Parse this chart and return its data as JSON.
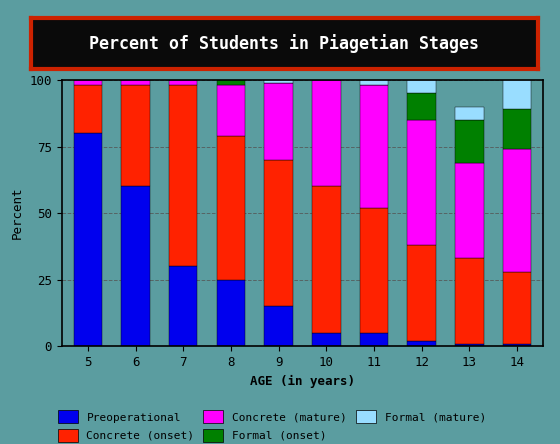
{
  "title": "Percent of Students in Piagetian Stages",
  "xlabel": "AGE (in years)",
  "ylabel": "Percent",
  "ages": [
    5,
    6,
    7,
    8,
    9,
    10,
    11,
    12,
    13,
    14
  ],
  "preoperational": [
    80,
    60,
    30,
    25,
    15,
    5,
    5,
    2,
    1,
    1
  ],
  "concrete_onset": [
    18,
    38,
    68,
    54,
    55,
    55,
    47,
    36,
    32,
    27
  ],
  "concrete_mature": [
    2,
    2,
    2,
    19,
    29,
    40,
    46,
    47,
    36,
    46
  ],
  "formal_onset": [
    0,
    0,
    0,
    2,
    0,
    0,
    0,
    10,
    16,
    15
  ],
  "formal_mature": [
    0,
    0,
    0,
    0,
    1,
    0,
    2,
    5,
    5,
    11
  ],
  "colors": {
    "preoperational": "#0000EE",
    "concrete_onset": "#FF2200",
    "concrete_mature": "#FF00FF",
    "formal_onset": "#008000",
    "formal_mature": "#99DDFF"
  },
  "bg_color": "#5B9DA0",
  "title_box_color": "#0a0a0a",
  "title_text_color": "#FFFFFF",
  "title_border_color": "#CC2200",
  "ylim": [
    0,
    100
  ],
  "yticks": [
    0,
    25,
    50,
    75,
    100
  ]
}
